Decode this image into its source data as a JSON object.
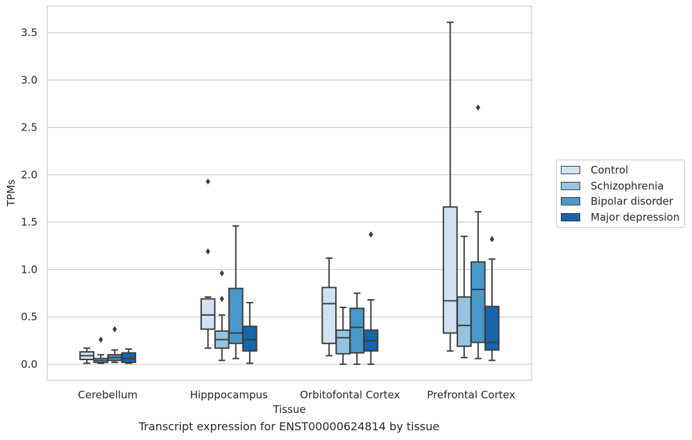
{
  "chart_data": {
    "type": "box",
    "xlabel": "Tissue",
    "ylabel": "TPMs",
    "caption": "Transcript expression for ENST00000624814 by tissue",
    "ylim": [
      -0.17,
      3.78
    ],
    "yticks": [
      "0.0",
      "0.5",
      "1.0",
      "1.5",
      "2.0",
      "2.5",
      "3.0",
      "3.5"
    ],
    "grid": "horizontal",
    "legend_position": "right",
    "categories": [
      "Cerebellum",
      "Hipppocampus",
      "Orbitofontal Cortex",
      "Prefrontal Cortex"
    ],
    "series": [
      {
        "name": "Control",
        "color": "#d0e1f2",
        "boxes": [
          {
            "whislo": 0.01,
            "q1": 0.05,
            "median": 0.09,
            "q3": 0.13,
            "whishi": 0.17,
            "fliers": []
          },
          {
            "whislo": 0.17,
            "q1": 0.37,
            "median": 0.52,
            "q3": 0.69,
            "whishi": 0.71,
            "fliers": [
              1.19,
              1.93
            ]
          },
          {
            "whislo": 0.09,
            "q1": 0.22,
            "median": 0.64,
            "q3": 0.81,
            "whishi": 1.12,
            "fliers": []
          },
          {
            "whislo": 0.14,
            "q1": 0.33,
            "median": 0.67,
            "q3": 1.66,
            "whishi": 3.61,
            "fliers": []
          }
        ]
      },
      {
        "name": "Schizophrenia",
        "color": "#94c4df",
        "boxes": [
          {
            "whislo": 0.01,
            "q1": 0.02,
            "median": 0.04,
            "q3": 0.06,
            "whishi": 0.1,
            "fliers": [
              0.26
            ]
          },
          {
            "whislo": 0.04,
            "q1": 0.17,
            "median": 0.26,
            "q3": 0.35,
            "whishi": 0.52,
            "fliers": [
              0.69,
              0.96
            ]
          },
          {
            "whislo": 0.0,
            "q1": 0.11,
            "median": 0.28,
            "q3": 0.36,
            "whishi": 0.6,
            "fliers": []
          },
          {
            "whislo": 0.07,
            "q1": 0.19,
            "median": 0.41,
            "q3": 0.71,
            "whishi": 1.35,
            "fliers": []
          }
        ]
      },
      {
        "name": "Bipolar disorder",
        "color": "#4a98c9",
        "boxes": [
          {
            "whislo": 0.02,
            "q1": 0.04,
            "median": 0.07,
            "q3": 0.1,
            "whishi": 0.15,
            "fliers": [
              0.37
            ]
          },
          {
            "whislo": 0.06,
            "q1": 0.22,
            "median": 0.33,
            "q3": 0.8,
            "whishi": 1.46,
            "fliers": []
          },
          {
            "whislo": 0.0,
            "q1": 0.12,
            "median": 0.39,
            "q3": 0.59,
            "whishi": 0.75,
            "fliers": []
          },
          {
            "whislo": 0.06,
            "q1": 0.23,
            "median": 0.79,
            "q3": 1.08,
            "whishi": 1.61,
            "fliers": [
              2.71
            ]
          }
        ]
      },
      {
        "name": "Major depression",
        "color": "#1764ab",
        "boxes": [
          {
            "whislo": 0.01,
            "q1": 0.02,
            "median": 0.06,
            "q3": 0.12,
            "whishi": 0.16,
            "fliers": []
          },
          {
            "whislo": 0.01,
            "q1": 0.14,
            "median": 0.26,
            "q3": 0.4,
            "whishi": 0.65,
            "fliers": []
          },
          {
            "whislo": 0.0,
            "q1": 0.14,
            "median": 0.25,
            "q3": 0.36,
            "whishi": 0.68,
            "fliers": [
              1.37
            ]
          },
          {
            "whislo": 0.04,
            "q1": 0.15,
            "median": 0.23,
            "q3": 0.61,
            "whishi": 1.11,
            "fliers": [
              1.32
            ]
          }
        ]
      }
    ]
  }
}
